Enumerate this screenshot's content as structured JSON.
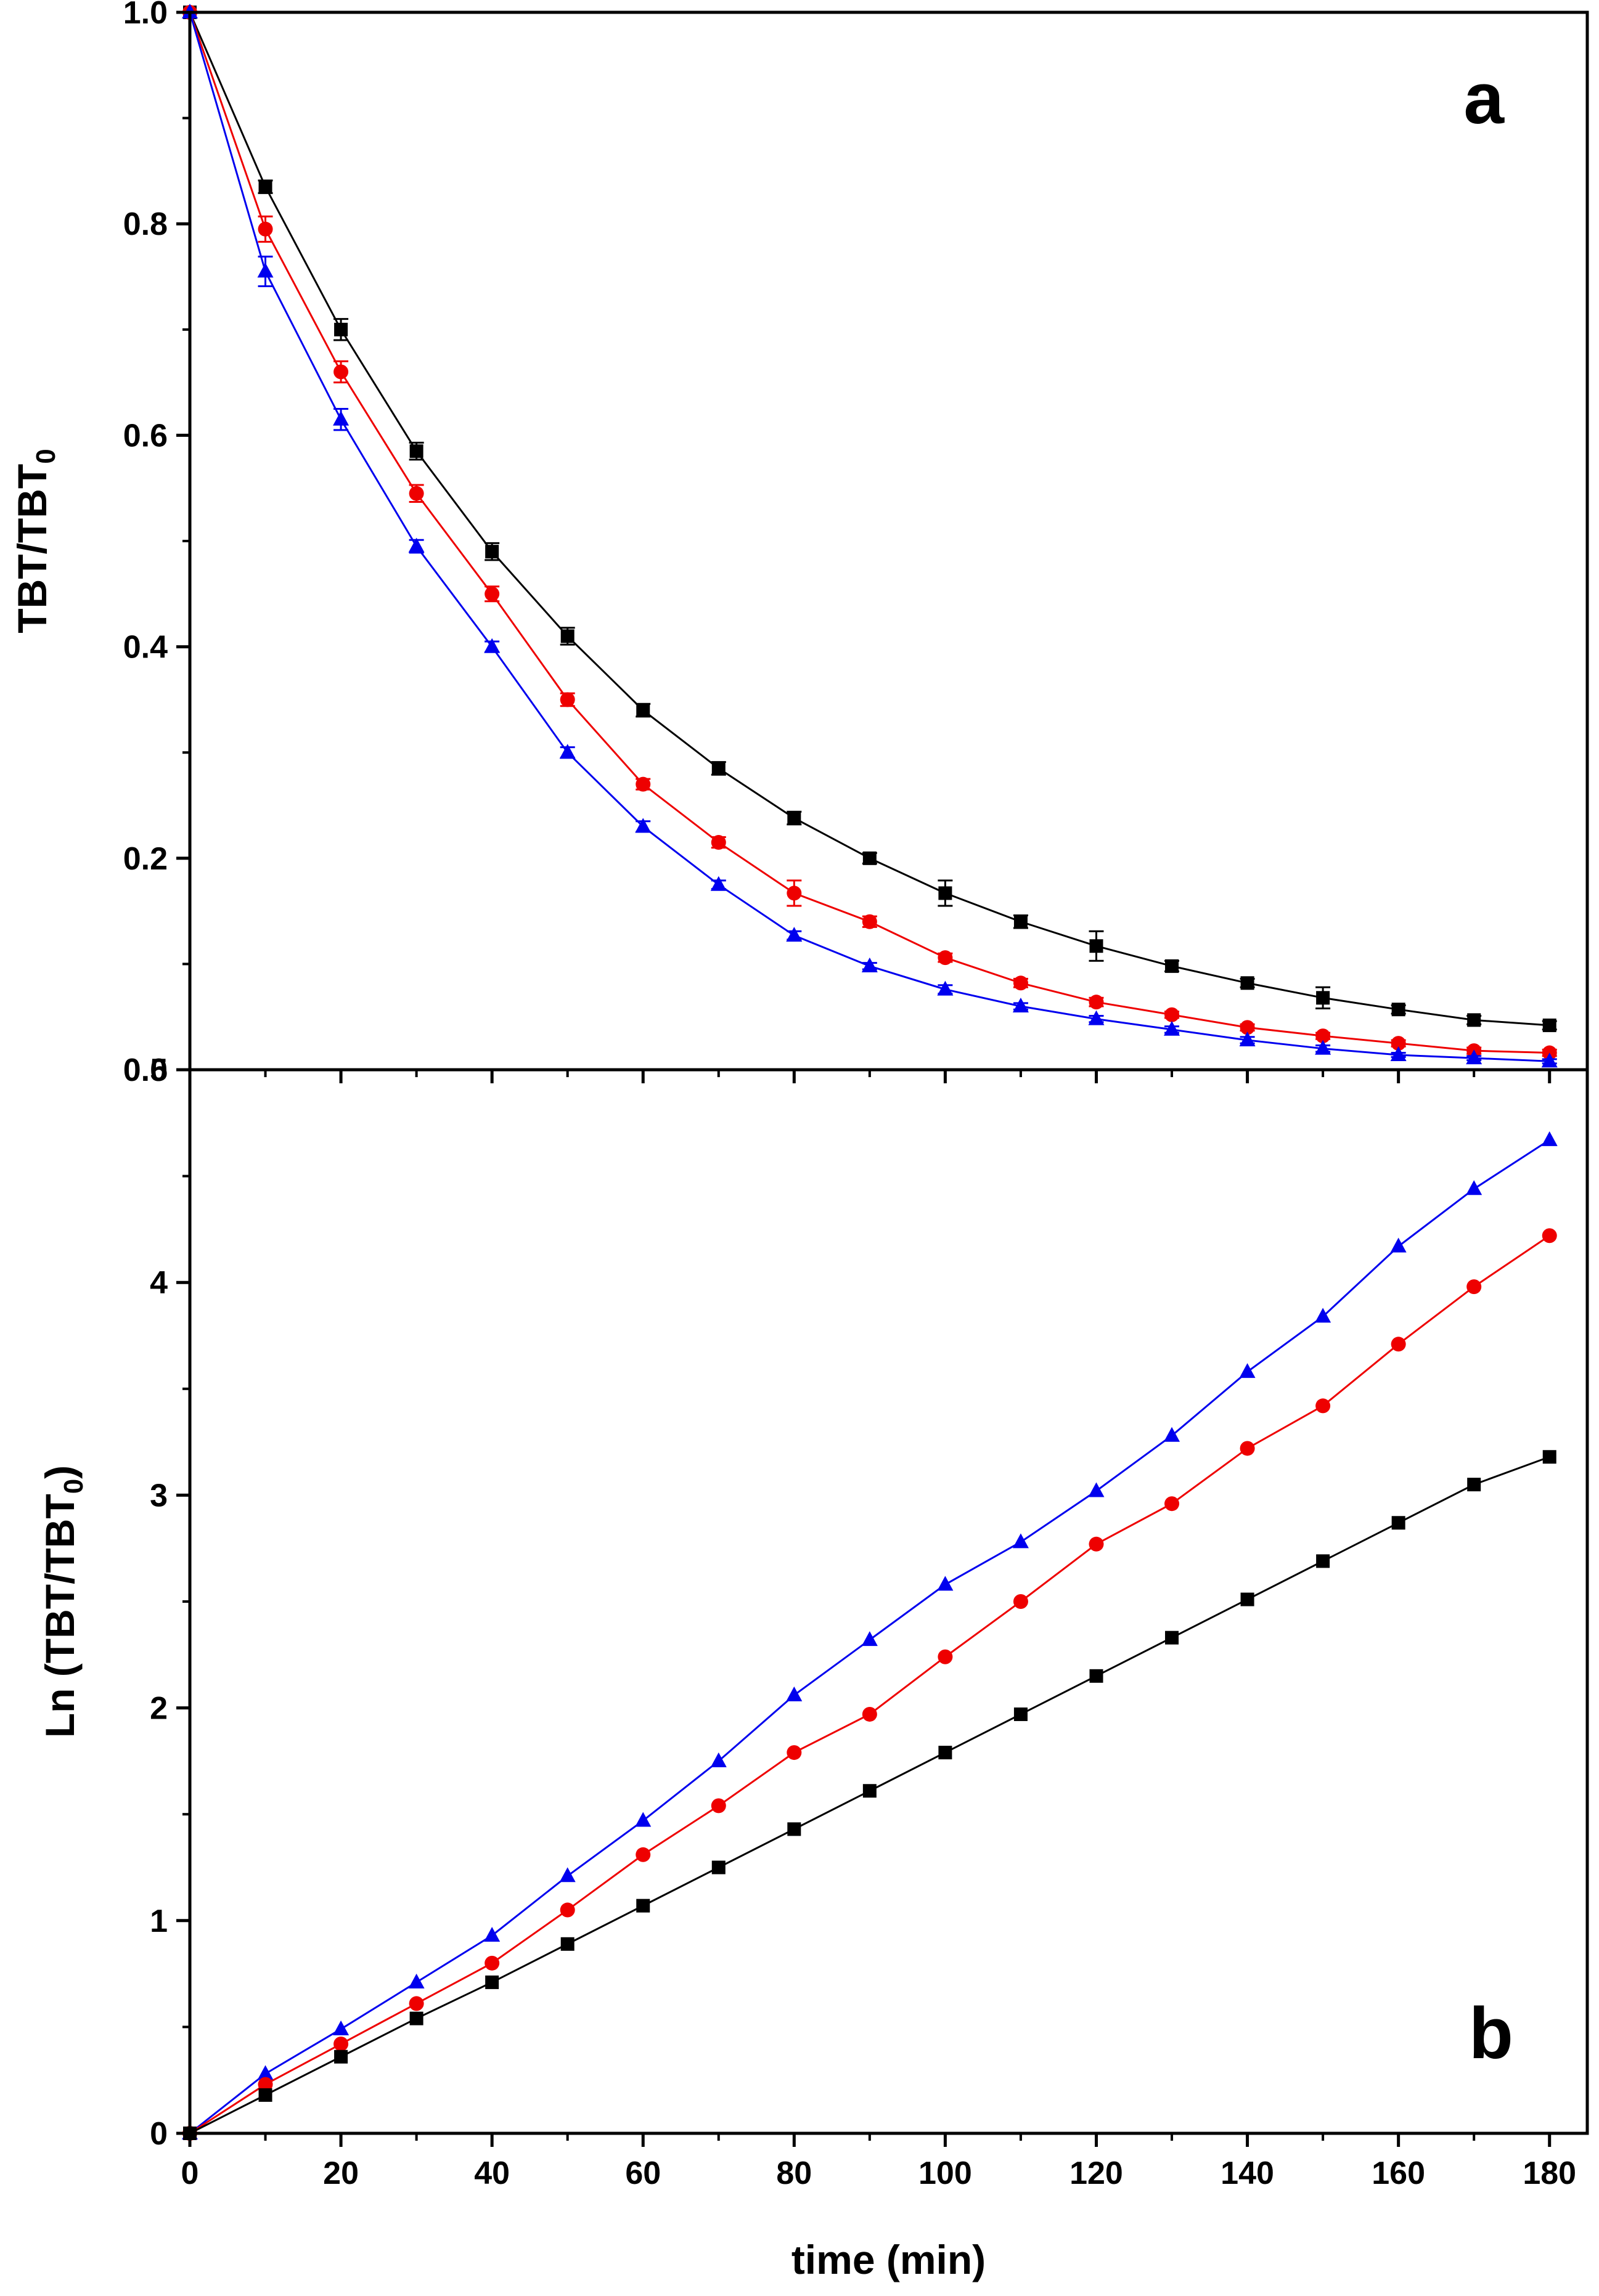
{
  "chart_data": [
    {
      "type": "line",
      "panel": "a",
      "panel_label": "a",
      "ylabel": {
        "main": "TBT/TBT",
        "sub": "0"
      },
      "xlabel": "",
      "xlim": [
        0,
        185
      ],
      "ylim": [
        0,
        1.0
      ],
      "x_ticks": [
        0,
        20,
        40,
        60,
        80,
        100,
        120,
        140,
        160,
        180
      ],
      "y_ticks": [
        0,
        0.2,
        0.4,
        0.6,
        0.8,
        1.0
      ],
      "y_tick_labels": [
        "0.0",
        "0.2",
        "0.4",
        "0.6",
        "0.8",
        "1.0"
      ],
      "x": [
        0,
        10,
        20,
        30,
        40,
        50,
        60,
        70,
        80,
        90,
        100,
        110,
        120,
        130,
        140,
        150,
        160,
        170,
        180
      ],
      "series": [
        {
          "name": "black",
          "color": "#000000",
          "marker": "square",
          "values": [
            1.0,
            0.835,
            0.7,
            0.585,
            0.49,
            0.41,
            0.34,
            0.285,
            0.238,
            0.2,
            0.167,
            0.14,
            0.117,
            0.098,
            0.082,
            0.068,
            0.057,
            0.047,
            0.042
          ],
          "errors": [
            0,
            0.006,
            0.01,
            0.008,
            0.008,
            0.008,
            0.006,
            0.006,
            0.006,
            0.005,
            0.012,
            0.006,
            0.014,
            0.005,
            0.004,
            0.01,
            0.004,
            0.004,
            0.004
          ]
        },
        {
          "name": "red",
          "color": "#ee0000",
          "marker": "circle",
          "values": [
            1.0,
            0.795,
            0.66,
            0.545,
            0.45,
            0.35,
            0.27,
            0.215,
            0.167,
            0.14,
            0.106,
            0.082,
            0.064,
            0.052,
            0.04,
            0.032,
            0.025,
            0.018,
            0.016
          ],
          "errors": [
            0,
            0.012,
            0.01,
            0.008,
            0.007,
            0.006,
            0.005,
            0.005,
            0.012,
            0.005,
            0.004,
            0.004,
            0.004,
            0.003,
            0.003,
            0.003,
            0.003,
            0.003,
            0.003
          ]
        },
        {
          "name": "blue",
          "color": "#0000ee",
          "marker": "triangle",
          "values": [
            1.0,
            0.755,
            0.615,
            0.495,
            0.4,
            0.3,
            0.23,
            0.175,
            0.127,
            0.098,
            0.076,
            0.06,
            0.048,
            0.038,
            0.028,
            0.02,
            0.014,
            0.011,
            0.008
          ],
          "errors": [
            0,
            0.014,
            0.01,
            0.006,
            0.005,
            0.005,
            0.005,
            0.004,
            0.004,
            0.003,
            0.004,
            0.003,
            0.003,
            0.003,
            0.003,
            0.003,
            0.002,
            0.002,
            0.002
          ]
        }
      ]
    },
    {
      "type": "line",
      "panel": "b",
      "panel_label": "b",
      "ylabel": {
        "main": "Ln (TBT/TBT",
        "sub": "0",
        "close": ")"
      },
      "xlabel": "time (min)",
      "xlim": [
        0,
        185
      ],
      "ylim": [
        0,
        5
      ],
      "x_ticks": [
        0,
        20,
        40,
        60,
        80,
        100,
        120,
        140,
        160,
        180
      ],
      "x_tick_labels": [
        "0",
        "20",
        "40",
        "60",
        "80",
        "100",
        "120",
        "140",
        "160",
        "180"
      ],
      "y_ticks": [
        0,
        1,
        2,
        3,
        4,
        5
      ],
      "y_tick_labels": [
        "0",
        "1",
        "2",
        "3",
        "4",
        "5"
      ],
      "x": [
        0,
        10,
        20,
        30,
        40,
        50,
        60,
        70,
        80,
        90,
        100,
        110,
        120,
        130,
        140,
        150,
        160,
        170,
        180
      ],
      "series": [
        {
          "name": "blue",
          "color": "#0000ee",
          "marker": "triangle",
          "values": [
            0,
            0.28,
            0.49,
            0.71,
            0.93,
            1.21,
            1.47,
            1.75,
            2.06,
            2.32,
            2.58,
            2.78,
            3.02,
            3.28,
            3.58,
            3.84,
            4.17,
            4.44,
            4.67
          ]
        },
        {
          "name": "red",
          "color": "#ee0000",
          "marker": "circle",
          "values": [
            0,
            0.23,
            0.42,
            0.61,
            0.8,
            1.05,
            1.31,
            1.54,
            1.79,
            1.97,
            2.24,
            2.5,
            2.77,
            2.96,
            3.22,
            3.42,
            3.71,
            3.98,
            4.22
          ]
        },
        {
          "name": "black",
          "color": "#000000",
          "marker": "square",
          "values": [
            0,
            0.18,
            0.36,
            0.54,
            0.71,
            0.89,
            1.07,
            1.25,
            1.43,
            1.61,
            1.79,
            1.97,
            2.15,
            2.33,
            2.51,
            2.69,
            2.87,
            3.05,
            3.18
          ]
        }
      ]
    }
  ]
}
